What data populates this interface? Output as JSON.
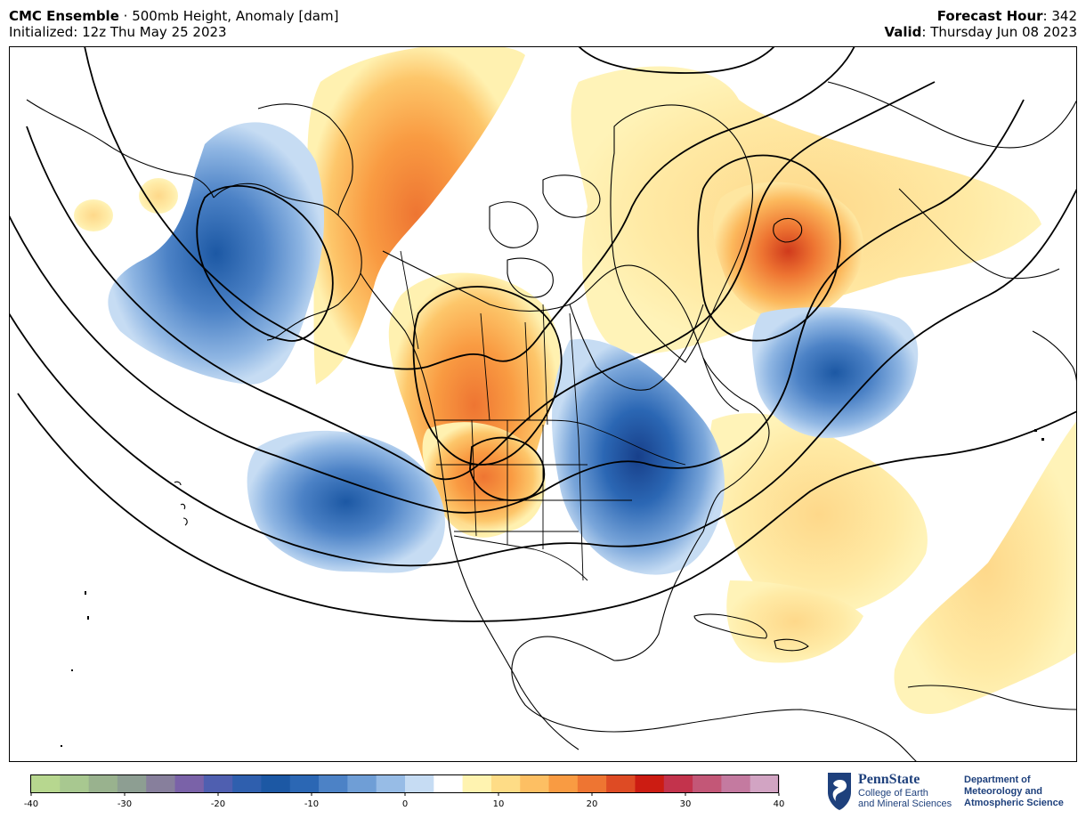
{
  "header": {
    "model": "CMC Ensemble",
    "separator": " · ",
    "product": "500mb Height, Anomaly [dam]",
    "initialized": "Initialized: 12z Thu May 25 2023",
    "forecast_hour_label": "Forecast Hour",
    "forecast_hour_value": ": 342",
    "valid_label": "Valid",
    "valid_value": ": Thursday Jun 08 2023"
  },
  "map": {
    "region": "North America / North Atlantic (polar stereographic)",
    "contours": "500mb height (black lines)",
    "shading": "anomaly [dam]"
  },
  "colorbar": {
    "ticks": [
      "-40",
      "-30",
      "-20",
      "-10",
      "0",
      "10",
      "20",
      "30",
      "40"
    ],
    "min": -40,
    "max": 40,
    "colors": [
      "#b7d78f",
      "#a8c890",
      "#99b28e",
      "#8d9e92",
      "#877f9c",
      "#7a62a8",
      "#4f5fb0",
      "#2f5fae",
      "#1c58a4",
      "#2b67b4",
      "#4c82c6",
      "#6f9ed6",
      "#97bce6",
      "#c6dcf3",
      "#ffffff",
      "#fff3b0",
      "#fedc86",
      "#fdbf63",
      "#f99b42",
      "#ee7532",
      "#de4b24",
      "#cc1c12",
      "#c3334c",
      "#c35777",
      "#c47aa0",
      "#d2a4c3"
    ]
  },
  "logos": {
    "pennstate_name": "PennState",
    "college_line1": "College of Earth",
    "college_line2": "and Mineral Sciences",
    "dept_line1": "Department of",
    "dept_line2": "Meteorology and",
    "dept_line3": "Atmospheric Science"
  }
}
